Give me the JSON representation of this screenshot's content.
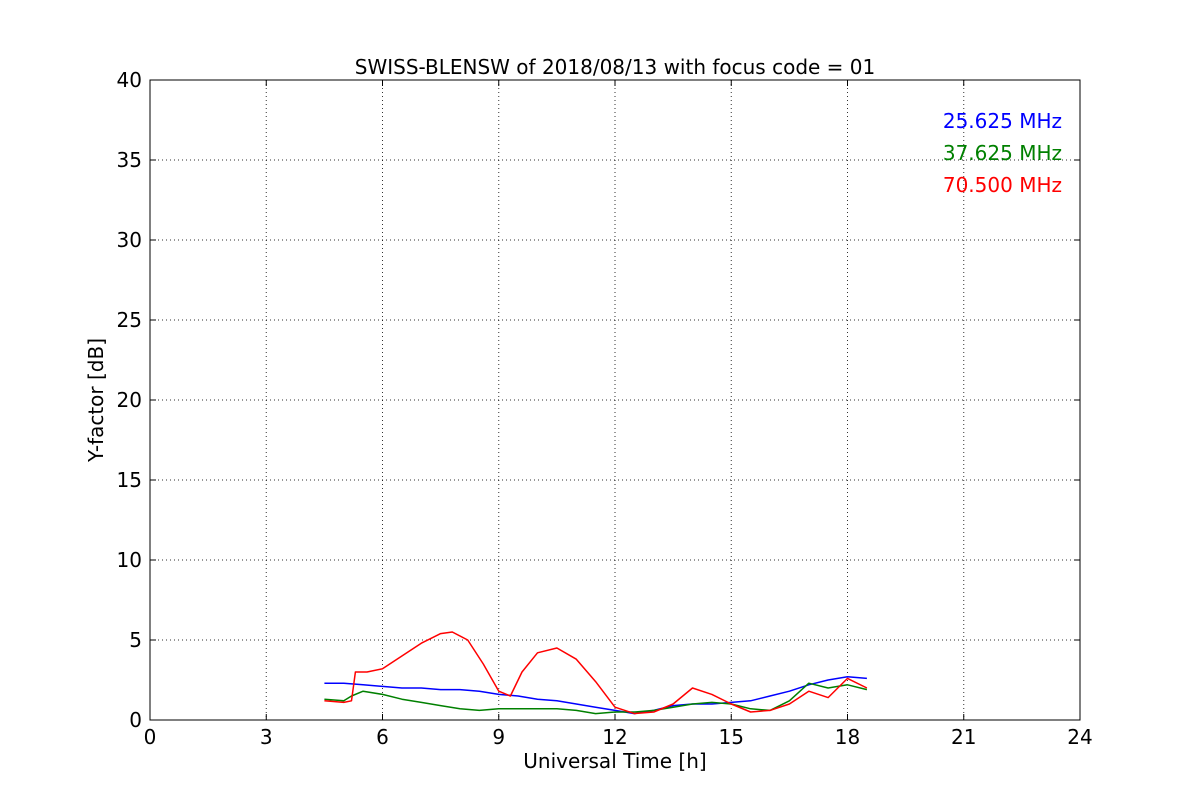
{
  "chart_data": {
    "type": "line",
    "title": "SWISS-BLENSW of 2018/08/13 with focus code = 01",
    "xlabel": "Universal Time [h]",
    "ylabel": "Y-factor [dB]",
    "xlim": [
      0,
      24
    ],
    "ylim": [
      0,
      40
    ],
    "xticks": [
      0,
      3,
      6,
      9,
      12,
      15,
      18,
      21,
      24
    ],
    "yticks": [
      0,
      5,
      10,
      15,
      20,
      25,
      30,
      35,
      40
    ],
    "xtick_labels": [
      "0",
      "3",
      "6",
      "9",
      "12",
      "15",
      "18",
      "21",
      "24"
    ],
    "ytick_labels": [
      "0",
      "5",
      "10",
      "15",
      "20",
      "25",
      "30",
      "35",
      "40"
    ],
    "grid": true,
    "legend_position": "top-right",
    "series": [
      {
        "name": "25.625 MHz",
        "color": "#0000ff",
        "x": [
          4.5,
          5.0,
          5.5,
          6.0,
          6.5,
          7.0,
          7.5,
          8.0,
          8.5,
          9.0,
          9.5,
          10.0,
          10.5,
          11.0,
          11.5,
          12.0,
          12.5,
          13.0,
          13.5,
          14.0,
          14.5,
          15.0,
          15.5,
          16.0,
          16.5,
          17.0,
          17.5,
          18.0,
          18.5
        ],
        "y": [
          2.3,
          2.3,
          2.2,
          2.1,
          2.0,
          2.0,
          1.9,
          1.9,
          1.8,
          1.6,
          1.5,
          1.3,
          1.2,
          1.0,
          0.8,
          0.6,
          0.4,
          0.6,
          0.9,
          1.0,
          1.0,
          1.1,
          1.2,
          1.5,
          1.8,
          2.2,
          2.5,
          2.7,
          2.6
        ]
      },
      {
        "name": "37.625 MHz",
        "color": "#008000",
        "x": [
          4.5,
          5.0,
          5.2,
          5.5,
          6.0,
          6.5,
          7.0,
          7.5,
          8.0,
          8.5,
          9.0,
          9.5,
          10.0,
          10.5,
          11.0,
          11.5,
          12.0,
          12.5,
          13.0,
          13.5,
          14.0,
          14.5,
          15.0,
          15.5,
          16.0,
          16.5,
          17.0,
          17.5,
          18.0,
          18.5
        ],
        "y": [
          1.3,
          1.2,
          1.5,
          1.8,
          1.6,
          1.3,
          1.1,
          0.9,
          0.7,
          0.6,
          0.7,
          0.7,
          0.7,
          0.7,
          0.6,
          0.4,
          0.5,
          0.5,
          0.6,
          0.8,
          1.0,
          1.1,
          1.0,
          0.7,
          0.6,
          1.2,
          2.3,
          2.0,
          2.2,
          1.9
        ]
      },
      {
        "name": "70.500 MHz",
        "color": "#ff0000",
        "x": [
          4.5,
          5.0,
          5.2,
          5.3,
          5.6,
          6.0,
          6.5,
          7.0,
          7.5,
          7.8,
          8.2,
          8.6,
          9.0,
          9.3,
          9.6,
          10.0,
          10.5,
          11.0,
          11.5,
          12.0,
          12.5,
          13.0,
          13.5,
          14.0,
          14.5,
          15.0,
          15.5,
          16.0,
          16.5,
          17.0,
          17.5,
          18.0,
          18.5
        ],
        "y": [
          1.2,
          1.1,
          1.2,
          3.0,
          3.0,
          3.2,
          4.0,
          4.8,
          5.4,
          5.5,
          5.0,
          3.5,
          1.8,
          1.5,
          3.0,
          4.2,
          4.5,
          3.8,
          2.4,
          0.8,
          0.4,
          0.5,
          1.0,
          2.0,
          1.6,
          1.0,
          0.5,
          0.6,
          1.0,
          1.8,
          1.4,
          2.6,
          2.0
        ]
      }
    ]
  }
}
